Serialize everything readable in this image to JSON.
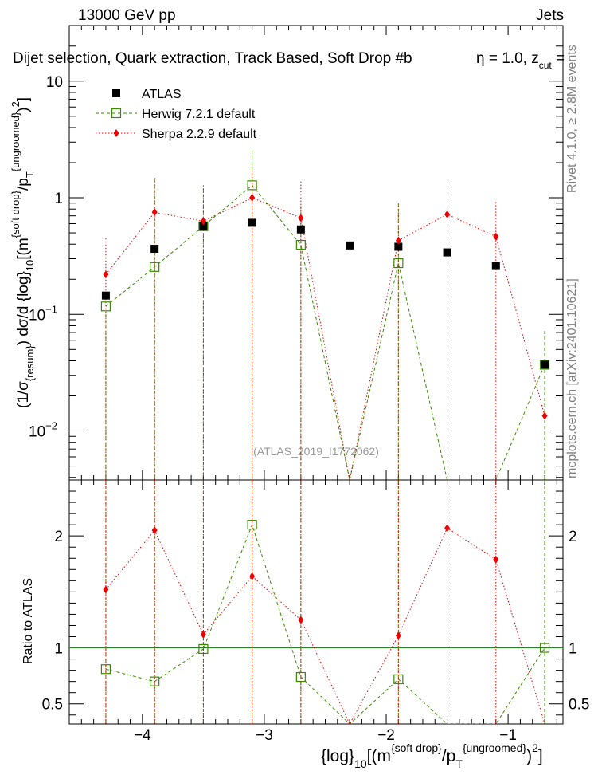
{
  "header": {
    "left": "13000 GeV pp",
    "right": "Jets",
    "subtitle": "Dijet selection, Quark extraction, Track Based, Soft Drop #b",
    "subtitle_right_a": "η = 1.0, z",
    "subtitle_right_sub": "cut",
    "subtitle_right_b": " ="
  },
  "side_labels": {
    "rivet": "Rivet 4.1.0, ≥ 2.8M events",
    "mcplots": "mcplots.cern.ch [arXiv:2401.10621]"
  },
  "watermark": "(ATLAS_2019_I1772062)",
  "axes": {
    "main_ylabel": {
      "a": "(1/σ",
      "a_sub": "{resum}",
      "b": ") dσ/d {log}",
      "b_sub": "10",
      "c": "[(m",
      "c_sup": "{soft drop}",
      "d": "/p",
      "d_sub": "T",
      "d_sup": "{ungroomed}",
      "e": ")",
      "e_sup": "2",
      "f": "]"
    },
    "ratio_ylabel": "Ratio to ATLAS",
    "xlabel": {
      "a": "{log}",
      "a_sub": "10",
      "b": "[(m",
      "b_sup": "{soft drop}",
      "c": "/p",
      "c_sub": "T",
      "c_sup": "{ungroomed}",
      "d": ")",
      "d_sup": "2",
      "e": "]"
    }
  },
  "chart_data": [
    {
      "type": "scatter",
      "panel": "main",
      "yscale": "log",
      "xlim": [
        -4.6,
        -0.55
      ],
      "ylim": [
        0.0038,
        30
      ],
      "x_ticks": [
        -4,
        -3,
        -2,
        -1
      ],
      "x_tick_labels": [
        "−4",
        "−3",
        "−2",
        "−1"
      ],
      "y_ticks": [
        0.01,
        0.1,
        1,
        10
      ],
      "y_tick_base": "10",
      "y_tick_exps": [
        "−2",
        "−1",
        "",
        ""
      ],
      "y_tick_plain": [
        "",
        "",
        "1",
        "10"
      ],
      "x": [
        -4.3,
        -3.9,
        -3.5,
        -3.1,
        -2.7,
        -2.3,
        -1.9,
        -1.5,
        -1.1,
        -0.7
      ],
      "series": [
        {
          "name": "ATLAS",
          "style": "data",
          "values": [
            0.145,
            0.365,
            0.57,
            0.61,
            0.535,
            0.39,
            0.38,
            0.34,
            0.26,
            0.037
          ]
        },
        {
          "name": "Herwig 7.2.1 default",
          "style": "herwig",
          "values": [
            0.117,
            0.255,
            0.57,
            1.28,
            0.395,
            0.0035,
            0.275,
            0.0035,
            0.0035,
            0.037
          ],
          "err_up": [
            0.1,
            1.45,
            1.2,
            2.55,
            0.85,
            null,
            0.9,
            null,
            null,
            0.072
          ],
          "err_down": [
            0.0035,
            0.0035,
            0.0035,
            0.0035,
            0.0035,
            null,
            0.0035,
            null,
            null,
            0.0035
          ]
        },
        {
          "name": "Sherpa 2.2.9 default",
          "style": "sherpa",
          "values": [
            0.22,
            0.75,
            0.63,
            1.0,
            0.67,
            0.0035,
            0.43,
            0.72,
            0.465,
            0.0135
          ],
          "err_up": [
            0.45,
            1.48,
            1.28,
            1.72,
            1.38,
            null,
            0.85,
            1.42,
            0.92,
            null
          ],
          "err_down": [
            0.0035,
            0.0035,
            0.0035,
            0.0035,
            0.0035,
            null,
            0.0035,
            0.0035,
            0.0035,
            null
          ]
        }
      ],
      "legend": [
        "ATLAS",
        "Herwig 7.2.1 default",
        "Sherpa 2.2.9 default"
      ]
    },
    {
      "type": "line",
      "panel": "ratio",
      "ylabel": "Ratio to ATLAS",
      "ylim": [
        0.32,
        2.5
      ],
      "y_ticks": [
        0.5,
        1,
        2
      ],
      "y_tick_labels": [
        "0.5",
        "1",
        "2"
      ],
      "x": [
        -4.3,
        -3.9,
        -3.5,
        -3.1,
        -2.7,
        -2.3,
        -1.9,
        -1.5,
        -1.1,
        -0.7
      ],
      "series": [
        {
          "name": "Herwig 7.2.1 default",
          "style": "herwig",
          "values": [
            0.81,
            0.7,
            0.99,
            2.1,
            0.74,
            0.01,
            0.72,
            0.01,
            0.01,
            1.0
          ]
        },
        {
          "name": "Sherpa 2.2.9 default",
          "style": "sherpa",
          "values": [
            1.52,
            2.05,
            1.12,
            1.64,
            1.25,
            0.01,
            1.11,
            2.07,
            1.79,
            0.01
          ]
        }
      ]
    }
  ],
  "colors": {
    "data": "#000000",
    "herwig": "#3a8a00",
    "sherpa": "#ee0000",
    "ratio_line": "#2e7d2e"
  }
}
